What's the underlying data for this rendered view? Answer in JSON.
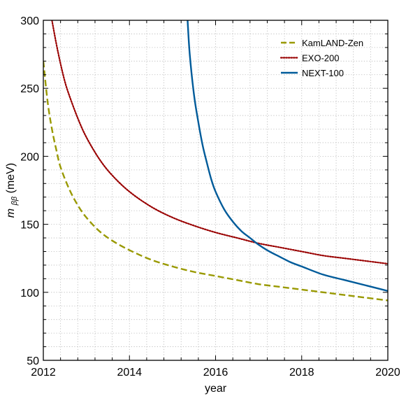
{
  "chart_data": {
    "type": "line",
    "title": "",
    "xlabel": "year",
    "ylabel_main": "m",
    "ylabel_sub": "ββ",
    "ylabel_unit": "(meV)",
    "xlim": [
      2012,
      2020
    ],
    "ylim": [
      50,
      300
    ],
    "x_ticks": [
      2012,
      2014,
      2016,
      2018,
      2020
    ],
    "y_ticks": [
      50,
      100,
      150,
      200,
      250,
      300
    ],
    "x_minor_step": 0.4,
    "y_minor_step": 10,
    "grid": true,
    "legend_position": "top-right",
    "series": [
      {
        "name": "KamLAND-Zen",
        "color": "#999900",
        "style": "dashed",
        "x": [
          2012.0,
          2012.1,
          2012.2,
          2012.3,
          2012.4,
          2012.6,
          2012.8,
          2013.0,
          2013.3,
          2013.6,
          2014.0,
          2014.5,
          2015.0,
          2015.5,
          2016.0,
          2016.5,
          2017.0,
          2017.5,
          2018.0,
          2018.5,
          2019.0,
          2019.5,
          2020.0
        ],
        "y": [
          270,
          240,
          220,
          205,
          192,
          176,
          164,
          155,
          145,
          138,
          131,
          124,
          119,
          115,
          112,
          109,
          106,
          104,
          102,
          100,
          98,
          96,
          94
        ]
      },
      {
        "name": "EXO-200",
        "color": "#990000",
        "style": "dotted",
        "x": [
          2012.2,
          2012.3,
          2012.4,
          2012.5,
          2012.6,
          2012.8,
          2013.0,
          2013.3,
          2013.6,
          2014.0,
          2014.5,
          2015.0,
          2015.5,
          2016.0,
          2016.5,
          2017.0,
          2017.5,
          2018.0,
          2018.5,
          2019.0,
          2019.5,
          2020.0
        ],
        "y": [
          300,
          283,
          268,
          255,
          245,
          228,
          214,
          198,
          186,
          174,
          163,
          155,
          149,
          144,
          140,
          136,
          133,
          130,
          127,
          125,
          123,
          121
        ]
      },
      {
        "name": "NEXT-100",
        "color": "#005b9a",
        "style": "solid",
        "x": [
          2015.35,
          2015.4,
          2015.5,
          2015.6,
          2015.7,
          2015.8,
          2015.9,
          2016.0,
          2016.2,
          2016.4,
          2016.6,
          2016.8,
          2017.0,
          2017.25,
          2017.5,
          2017.75,
          2018.0,
          2018.5,
          2019.0,
          2019.5,
          2020.0
        ],
        "y": [
          300,
          275,
          245,
          225,
          208,
          195,
          183,
          174,
          161,
          152,
          145,
          140,
          135,
          130,
          126,
          122,
          119,
          113,
          109,
          105,
          101
        ]
      }
    ]
  }
}
